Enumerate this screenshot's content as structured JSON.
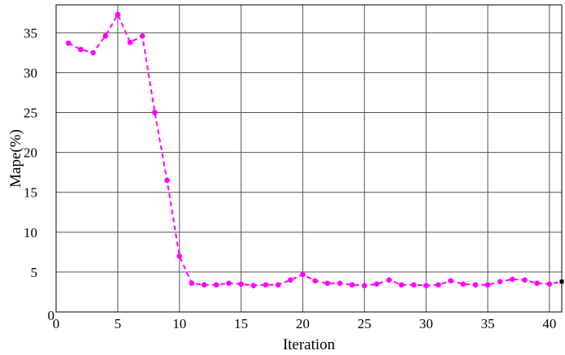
{
  "chart_data": {
    "type": "line",
    "xlabel": "Iteration",
    "ylabel": "Mape(%)",
    "xlim": [
      0,
      41
    ],
    "ylim": [
      0,
      38.5
    ],
    "xticks": [
      0,
      5,
      10,
      15,
      20,
      25,
      30,
      35,
      40
    ],
    "yticks": [
      5,
      10,
      15,
      20,
      25,
      30,
      35
    ],
    "y_zero_label": "0",
    "grid": true,
    "legend": "none",
    "series": [
      {
        "color": "#ff00ff",
        "line_style": "dashed",
        "marker": "circle",
        "x": [
          1,
          2,
          3,
          4,
          5,
          6,
          7,
          8,
          9,
          10,
          11,
          12,
          13,
          14,
          15,
          16,
          17,
          18,
          19,
          20,
          21,
          22,
          23,
          24,
          25,
          26,
          27,
          28,
          29,
          30,
          31,
          32,
          33,
          34,
          35,
          36,
          37,
          38,
          39,
          40,
          41
        ],
        "y": [
          33.7,
          32.9,
          32.5,
          34.6,
          37.3,
          33.8,
          34.6,
          25.0,
          16.5,
          7.0,
          3.6,
          3.4,
          3.4,
          3.6,
          3.5,
          3.3,
          3.4,
          3.4,
          4.0,
          4.7,
          3.9,
          3.6,
          3.6,
          3.4,
          3.3,
          3.5,
          4.0,
          3.4,
          3.4,
          3.3,
          3.4,
          3.9,
          3.5,
          3.4,
          3.4,
          3.8,
          4.1,
          4.0,
          3.6,
          3.5,
          3.8
        ]
      }
    ]
  }
}
